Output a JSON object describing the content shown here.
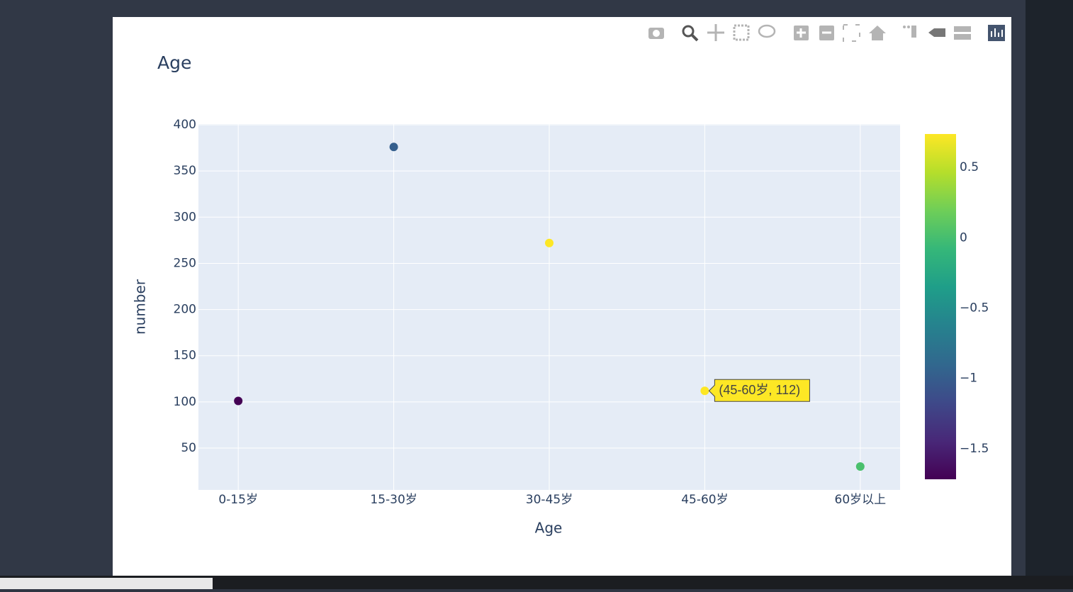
{
  "chart_data": {
    "type": "scatter",
    "title": "Age",
    "x_label": "Age",
    "y_label": "number",
    "categories": [
      "0-15岁",
      "15-30岁",
      "30-45岁",
      "45-60岁",
      "60岁以上"
    ],
    "series": [
      {
        "values": [
          101,
          376,
          272,
          112,
          30
        ],
        "color_values": [
          -1.717,
          -0.98,
          0.737,
          0.737,
          0.02
        ]
      }
    ],
    "colorscale": "Viridis",
    "ylim": [
      4.7,
      400.8
    ],
    "yticks": [
      50,
      100,
      150,
      200,
      250,
      300,
      350,
      400
    ],
    "grid": true,
    "clim": [
      -1.717,
      0.737
    ],
    "cticks": [
      {
        "value": -1.5,
        "label": "−1.5"
      },
      {
        "value": -1,
        "label": "−1"
      },
      {
        "value": -0.5,
        "label": "−0.5"
      },
      0,
      0.5
    ],
    "hover_label": "(45-60岁, 112)",
    "hover_index": 3
  }
}
